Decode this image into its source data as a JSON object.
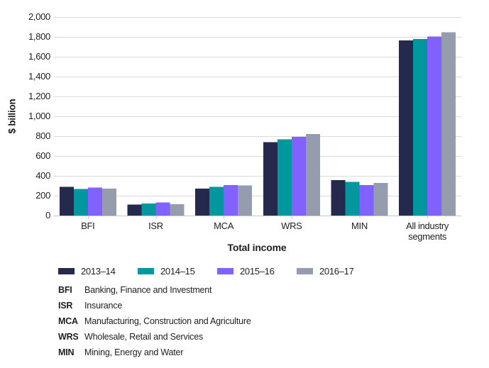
{
  "chart_data": {
    "type": "bar",
    "title": "",
    "ylabel": "$ billion",
    "xlabel": "Total income",
    "ylim": [
      0,
      2000
    ],
    "ytick_step": 200,
    "ytick_labels": [
      "0",
      "200",
      "400",
      "600",
      "800",
      "1,000",
      "1,200",
      "1,400",
      "1,600",
      "1,800",
      "2,000"
    ],
    "grid": true,
    "legend_position": "bottom",
    "categories": [
      "BFI",
      "ISR",
      "MCA",
      "WRS",
      "MIN",
      "All industry segments"
    ],
    "series": [
      {
        "name": "2013–14",
        "color": "#252A4D",
        "values": [
          288,
          112,
          270,
          740,
          357,
          1765
        ]
      },
      {
        "name": "2014–15",
        "color": "#00979E",
        "values": [
          267,
          122,
          290,
          768,
          339,
          1778
        ]
      },
      {
        "name": "2015–16",
        "color": "#8262FF",
        "values": [
          281,
          131,
          307,
          792,
          306,
          1804
        ]
      },
      {
        "name": "2016–17",
        "color": "#959CAD",
        "values": [
          271,
          114,
          303,
          820,
          327,
          1846
        ]
      }
    ],
    "footnotes": [
      {
        "abbr": "BFI",
        "text": "Banking, Finance and Investment"
      },
      {
        "abbr": "ISR",
        "text": "Insurance"
      },
      {
        "abbr": "MCA",
        "text": "Manufacturing, Construction and Agriculture"
      },
      {
        "abbr": "WRS",
        "text": "Wholesale, Retail and Services"
      },
      {
        "abbr": "MIN",
        "text": "Mining, Energy and Water"
      }
    ]
  },
  "colors": {
    "gridline": "#D9D9D9",
    "axis": "#C4C4C4",
    "text": "#1F1F1F",
    "background": "#FFFFFF"
  }
}
